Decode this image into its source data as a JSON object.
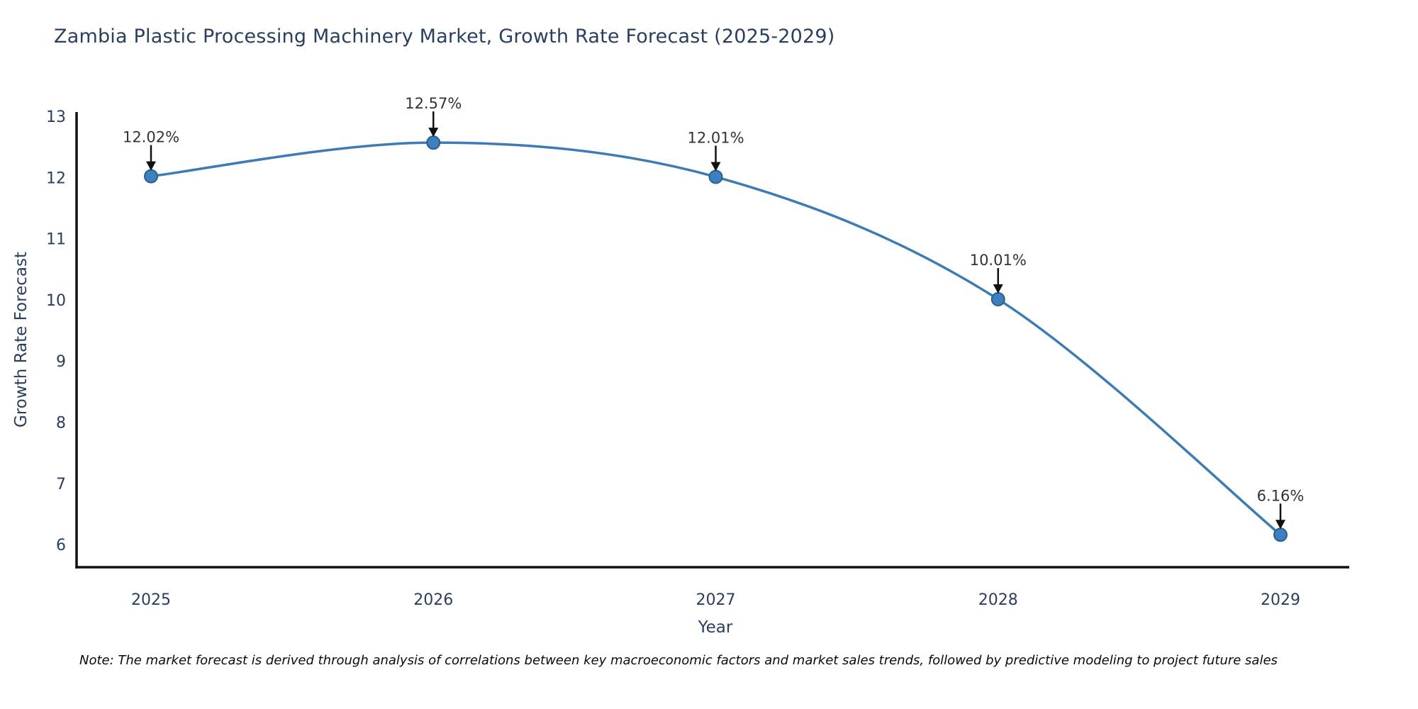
{
  "header": {
    "title": "Zambia Plastic Processing Machinery Market, Growth Rate Forecast (2025-2029)"
  },
  "footnote": "Note: The market forecast is derived through analysis of correlations between key macroeconomic factors and market sales trends, followed by predictive modeling to project future sales",
  "chart_data": {
    "type": "line",
    "title": "Zambia Plastic Processing Machinery Market, Growth Rate Forecast (2025-2029)",
    "x": [
      2025,
      2026,
      2027,
      2028,
      2029
    ],
    "series": [
      {
        "name": "Growth Rate Forecast",
        "values": [
          12.02,
          12.57,
          12.01,
          10.01,
          6.16
        ]
      }
    ],
    "point_labels": [
      "12.02%",
      "12.57%",
      "12.01%",
      "10.01%",
      "6.16%"
    ],
    "xlabel": "Year",
    "ylabel": "Growth Rate Forecast",
    "ylim": [
      5.63,
      13.07
    ],
    "yticks": [
      6,
      7,
      8,
      9,
      10,
      11,
      12,
      13
    ],
    "grid": false,
    "legend": "none",
    "line_shape": "spline",
    "colors": {
      "line": "#3d7bb4",
      "marker_fill": "#3c80bf",
      "marker_edge": "#2b5f8e",
      "axis": "#111111",
      "text": "#2a3f5f",
      "annotation": "#333333",
      "arrow": "#111111",
      "background": "#ffffff"
    }
  }
}
